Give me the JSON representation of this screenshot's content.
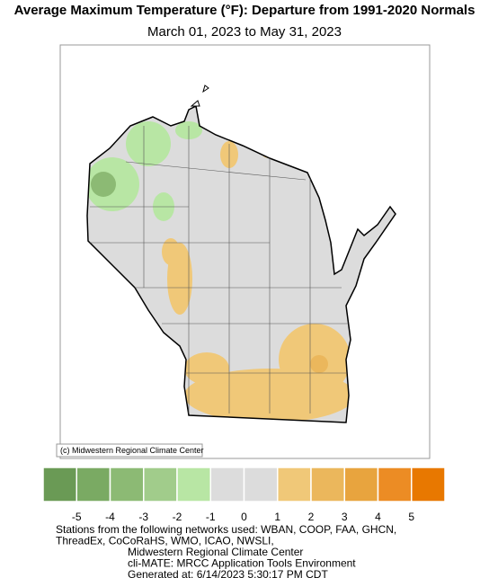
{
  "title": "Average Maximum Temperature (°F): Departure from 1991-2020 Normals",
  "subtitle": "March 01, 2023 to May 31, 2023",
  "credit": "(c) Midwestern Regional Climate Center",
  "legend": {
    "colors": [
      "#6a9a55",
      "#7aaa63",
      "#8cba74",
      "#a1cc8b",
      "#b8e6a4",
      "#dcdcdc",
      "#dcdcdc",
      "#f0c878",
      "#ebb75c",
      "#e8a43e",
      "#ec8c24",
      "#e87800"
    ],
    "ticks": [
      -5,
      -4,
      -3,
      -2,
      -1,
      0,
      1,
      2,
      3,
      4,
      5
    ]
  },
  "footer": [
    "Stations from the following networks used: WBAN, COOP, FAA, GHCN,",
    "ThreadEx, CoCoRaHS, WMO, ICAO, NWSLI,",
    "Midwestern Regional Climate Center",
    "cli-MATE: MRCC Application Tools Environment",
    "Generated at: 6/14/2023 5:30:17 PM CDT"
  ]
}
